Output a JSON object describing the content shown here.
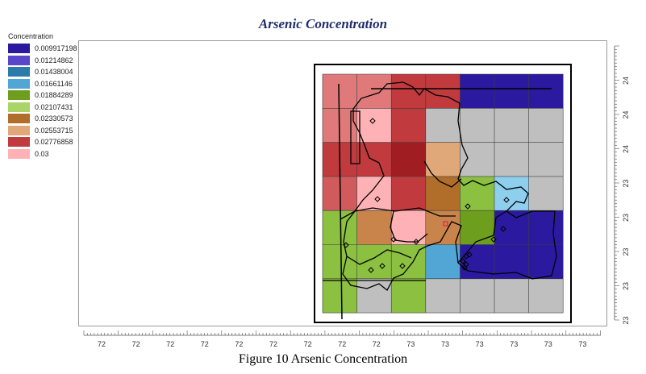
{
  "title": "Arsenic Concentration",
  "caption": "Figure 10 Arsenic Concentration",
  "legend": {
    "title": "Concentration",
    "items": [
      {
        "label": "0.009917198",
        "color": "#2b1aa0"
      },
      {
        "label": "0.01214862",
        "color": "#5a46c8"
      },
      {
        "label": "0.01438004",
        "color": "#2a7aaa"
      },
      {
        "label": "0.01661146",
        "color": "#52a6d6"
      },
      {
        "label": "0.01884289",
        "color": "#6e9e1e"
      },
      {
        "label": "0.02107431",
        "color": "#a8d468"
      },
      {
        "label": "0.02330573",
        "color": "#b06e2a"
      },
      {
        "label": "0.02553715",
        "color": "#e0a878"
      },
      {
        "label": "0.02776858",
        "color": "#c03a3e"
      },
      {
        "label": "0.03",
        "color": "#ffb2b6"
      }
    ]
  },
  "x_axis_ticks": [
    "72",
    "72",
    "72",
    "72",
    "72",
    "72",
    "72",
    "72",
    "72",
    "73",
    "73",
    "73",
    "73",
    "73",
    "73"
  ],
  "y_axis_ticks": [
    "24",
    "24",
    "24",
    "23",
    "23",
    "23",
    "23",
    "23"
  ],
  "grid_cells": [
    [
      "#e07a7a",
      "#e07a7a",
      "#c03a3e",
      "#c03a3e",
      "#2b1aa0",
      "#2b1aa0",
      "#2b1aa0"
    ],
    [
      "#e07a7a",
      "#ffb2b6",
      "#c03a3e",
      "#bfbfbf",
      "#bfbfbf",
      "#bfbfbf",
      "#bfbfbf"
    ],
    [
      "#c03a3e",
      "#c03a3e",
      "#a01e22",
      "#e0a878",
      "#bfbfbf",
      "#bfbfbf",
      "#bfbfbf"
    ],
    [
      "#d05a5c",
      "#ffb2b6",
      "#c03a3e",
      "#b06e2a",
      "#8cc040",
      "#8ecfee",
      "#bfbfbf"
    ],
    [
      "#8cc040",
      "#c8844a",
      "#ffb2b6",
      "#c8844a",
      "#6e9e1e",
      "#2b1aa0",
      "#2b1aa0"
    ],
    [
      "#8cc040",
      "#8cc040",
      "#8cc040",
      "#52a6d6",
      "#2b1aa0",
      "#2b1aa0",
      "#2b1aa0"
    ],
    [
      "#8cc040",
      "#bfbfbf",
      "#8cc040",
      "#bfbfbf",
      "#bfbfbf",
      "#bfbfbf",
      "#bfbfbf"
    ]
  ]
}
